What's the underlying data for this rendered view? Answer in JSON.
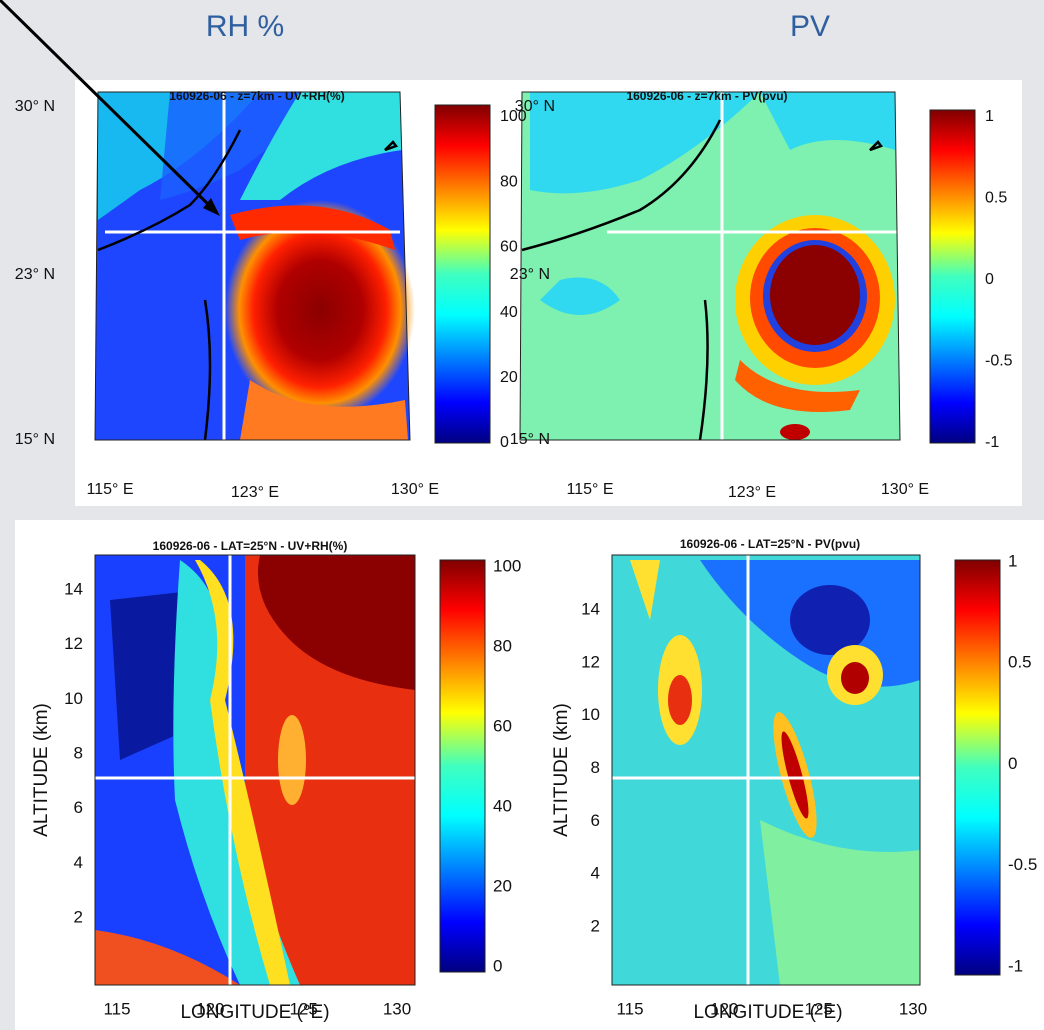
{
  "header": {
    "labels": [
      "RH %",
      "PV"
    ]
  },
  "panels": [
    {
      "title": "160926-06  -  z=7km  -  UV+RH(%)",
      "y_ticks": [
        "30° N",
        "23° N",
        "15° N"
      ],
      "x_ticks": [
        "115° E",
        "123° E",
        "130° E"
      ],
      "colorbar_ticks": [
        "100",
        "80",
        "60",
        "40",
        "20",
        "0"
      ]
    },
    {
      "title": "160926-06  -  z=7km  -  PV(pvu)",
      "y_ticks": [
        "30° N",
        "23° N",
        "15° N"
      ],
      "x_ticks": [
        "115° E",
        "123° E",
        "130° E"
      ],
      "colorbar_ticks": [
        "1",
        "0.5",
        "0",
        "-0.5",
        "-1"
      ]
    },
    {
      "title": "160926-06  -  LAT=25°N  -  UV+RH(%)",
      "y_ticks": [
        "14",
        "12",
        "10",
        "8",
        "6",
        "4",
        "2"
      ],
      "x_ticks": [
        "115",
        "120",
        "125",
        "130"
      ],
      "colorbar_ticks": [
        "100",
        "80",
        "60",
        "40",
        "20",
        "0"
      ],
      "x_label": "LONGITUDE (°E)",
      "y_label": "ALTITUDE (km)"
    },
    {
      "title": "160926-06  -  LAT=25°N  -  PV(pvu)",
      "y_ticks": [
        "14",
        "12",
        "10",
        "8",
        "6",
        "4",
        "2"
      ],
      "x_ticks": [
        "115",
        "120",
        "125",
        "130"
      ],
      "colorbar_ticks": [
        "1",
        "0.5",
        "0",
        "-0.5",
        "-1"
      ],
      "x_label": "LONGITUDE (°E)",
      "y_label": "ALTITUDE (km)"
    }
  ]
}
